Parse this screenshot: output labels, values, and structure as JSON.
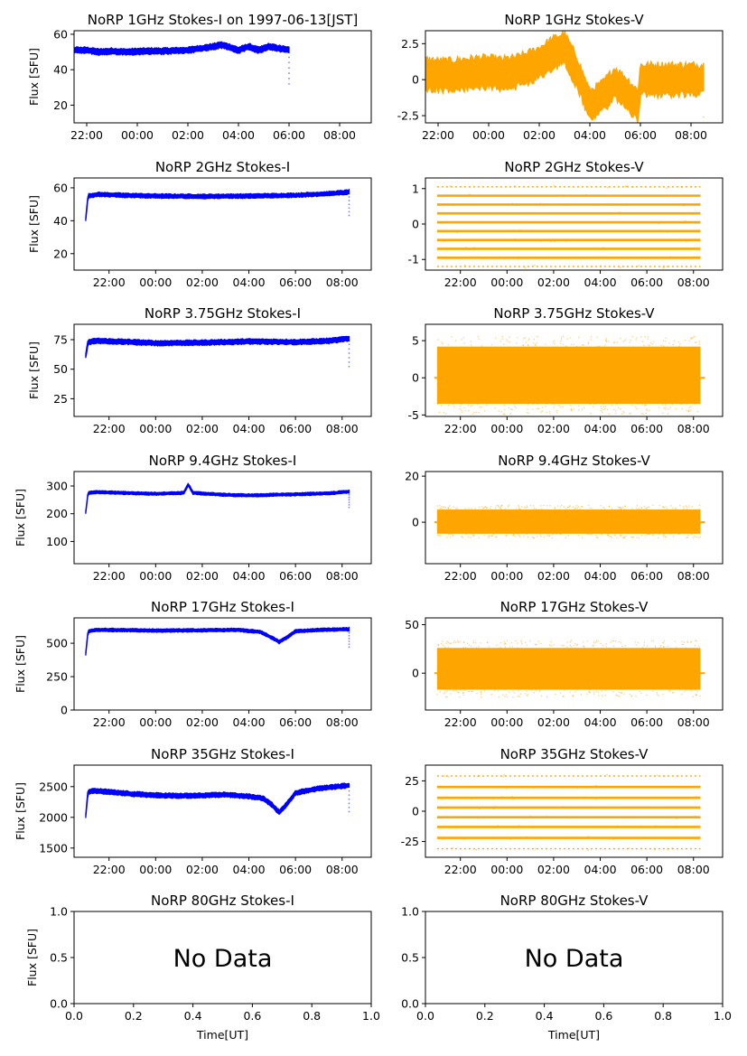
{
  "figure": {
    "xlabel": "Time[UT]",
    "no_data_label": "No Data"
  },
  "colors": {
    "stokes_i": "#0000ff",
    "stokes_v": "#ffa500",
    "axes": "#000000"
  },
  "chart_data": [
    {
      "id": "p0",
      "type": "scatter",
      "title": "NoRP 1GHz Stokes-I on 1997-06-13[JST]",
      "ylabel": "Flux [SFU]",
      "color": "#0000ff",
      "style": "line",
      "xticks": [
        "22:00",
        "00:00",
        "02:00",
        "04:00",
        "06:00",
        "08:00"
      ],
      "xlim": [
        -2.5,
        9.25
      ],
      "ylim": [
        10,
        62
      ],
      "yticks": [
        20,
        40,
        60
      ],
      "xrange": [
        -3,
        6
      ],
      "series": [
        {
          "x": [
            -3.0,
            -2.9,
            -2.5,
            -2.0,
            -1.5,
            -1.0,
            -0.5,
            0,
            0.5,
            1.0,
            1.5,
            2.0,
            2.5,
            3.0,
            3.3,
            3.6,
            4.0,
            4.4,
            4.8,
            5.2,
            5.6,
            6.0
          ],
          "y": [
            41,
            48,
            51,
            51,
            50,
            50.5,
            50,
            50.3,
            50.5,
            50.5,
            50.7,
            51,
            52,
            53,
            54,
            53,
            51,
            53,
            51,
            53,
            52,
            51
          ],
          "band": 2
        }
      ]
    },
    {
      "id": "p1",
      "type": "scatter",
      "title": "NoRP 1GHz Stokes-V",
      "ylabel": "",
      "color": "#ffa500",
      "style": "line",
      "xticks": [
        "22:00",
        "00:00",
        "02:00",
        "04:00",
        "06:00",
        "08:00"
      ],
      "xlim": [
        -2.5,
        9.25
      ],
      "ylim": [
        -3,
        3.4
      ],
      "yticks": [
        -2.5,
        0.0,
        2.5
      ],
      "xrange": [
        -3,
        8.5
      ],
      "series": [
        {
          "x": [
            -3.0,
            -2.5,
            -2.0,
            -1.5,
            -1.0,
            -0.5,
            0,
            0.5,
            1.0,
            1.5,
            2.0,
            2.5,
            3.0,
            3.5,
            4.0,
            4.5,
            5.0,
            5.5,
            5.9,
            6.0,
            8.5
          ],
          "y": [
            0.1,
            0.4,
            0.3,
            0.3,
            0.4,
            0.5,
            0.5,
            0.4,
            0.5,
            0.8,
            1.2,
            1.8,
            2.2,
            0.5,
            -1.8,
            -1.2,
            -0.2,
            -1.0,
            -1.8,
            0,
            0
          ],
          "band": 1.3
        }
      ]
    },
    {
      "id": "p2",
      "type": "scatter",
      "title": "NoRP 2GHz Stokes-I",
      "ylabel": "Flux [SFU]",
      "color": "#0000ff",
      "style": "line",
      "xticks": [
        "22:00",
        "00:00",
        "02:00",
        "04:00",
        "06:00",
        "08:00"
      ],
      "xlim": [
        -3.5,
        9.25
      ],
      "ylim": [
        10,
        66
      ],
      "yticks": [
        20,
        40,
        60
      ],
      "xrange": [
        -3,
        8.3
      ],
      "series": [
        {
          "x": [
            -3.0,
            -2.9,
            -2.5,
            -1.5,
            0,
            2.0,
            4.0,
            6.0,
            7.5,
            8.3
          ],
          "y": [
            41,
            55,
            56,
            55.5,
            55,
            54.8,
            55,
            55.5,
            56.5,
            57.5
          ],
          "band": 1.5
        }
      ]
    },
    {
      "id": "p3",
      "type": "scatter",
      "title": "NoRP 2GHz Stokes-V",
      "ylabel": "",
      "color": "#ffa500",
      "style": "levels",
      "xticks": [
        "22:00",
        "00:00",
        "02:00",
        "04:00",
        "06:00",
        "08:00"
      ],
      "xlim": [
        -3.5,
        9.25
      ],
      "ylim": [
        -1.3,
        1.3
      ],
      "yticks": [
        -1,
        0,
        1
      ],
      "xrange": [
        -3,
        8.3
      ],
      "levels": [
        -1.2,
        -0.95,
        -0.7,
        -0.45,
        -0.2,
        0.05,
        0.3,
        0.55,
        0.8,
        1.05
      ]
    },
    {
      "id": "p4",
      "type": "scatter",
      "title": "NoRP 3.75GHz Stokes-I",
      "ylabel": "Flux [SFU]",
      "color": "#0000ff",
      "style": "line",
      "xticks": [
        "22:00",
        "00:00",
        "02:00",
        "04:00",
        "06:00",
        "08:00"
      ],
      "xlim": [
        -3.5,
        9.25
      ],
      "ylim": [
        10,
        88
      ],
      "yticks": [
        25,
        50,
        75
      ],
      "xrange": [
        -3,
        8.3
      ],
      "series": [
        {
          "x": [
            -3.0,
            -2.9,
            -2.5,
            -1.0,
            0,
            2.0,
            4.0,
            6.0,
            7.5,
            8.3
          ],
          "y": [
            61,
            73,
            74,
            73,
            72,
            72.5,
            73.5,
            73,
            74,
            76
          ],
          "band": 2.5
        }
      ]
    },
    {
      "id": "p5",
      "type": "scatter",
      "title": "NoRP 3.75GHz Stokes-V",
      "ylabel": "",
      "color": "#ffa500",
      "style": "band",
      "xticks": [
        "22:00",
        "00:00",
        "02:00",
        "04:00",
        "06:00",
        "08:00"
      ],
      "xlim": [
        -3.5,
        9.25
      ],
      "ylim": [
        -5.2,
        7.2
      ],
      "yticks": [
        -5,
        0,
        5
      ],
      "xrange": [
        -3,
        8.3
      ],
      "band_limits": [
        -3.5,
        4.2
      ]
    },
    {
      "id": "p6",
      "type": "scatter",
      "title": "NoRP 9.4GHz Stokes-I",
      "ylabel": "Flux [SFU]",
      "color": "#0000ff",
      "style": "line",
      "xticks": [
        "22:00",
        "00:00",
        "02:00",
        "04:00",
        "06:00",
        "08:00"
      ],
      "xlim": [
        -3.5,
        9.25
      ],
      "ylim": [
        20,
        352
      ],
      "yticks": [
        100,
        200,
        300
      ],
      "xrange": [
        -3,
        8.3
      ],
      "series": [
        {
          "x": [
            -3.0,
            -2.9,
            -2.5,
            -1.0,
            0,
            1.2,
            1.4,
            1.6,
            3.0,
            4.0,
            6.0,
            7.5,
            8.3
          ],
          "y": [
            205,
            275,
            278,
            274,
            272,
            275,
            305,
            275,
            268,
            266,
            270,
            274,
            280
          ],
          "band": 6
        }
      ]
    },
    {
      "id": "p7",
      "type": "scatter",
      "title": "NoRP 9.4GHz Stokes-V",
      "ylabel": "",
      "color": "#ffa500",
      "style": "band",
      "xticks": [
        "22:00",
        "00:00",
        "02:00",
        "04:00",
        "06:00",
        "08:00"
      ],
      "xlim": [
        -3.5,
        9.25
      ],
      "ylim": [
        -18,
        22
      ],
      "yticks": [
        0,
        20
      ],
      "xrange": [
        -3,
        8.3
      ],
      "band_limits": [
        -5,
        5.5
      ]
    },
    {
      "id": "p8",
      "type": "scatter",
      "title": "NoRP 17GHz Stokes-I",
      "ylabel": "Flux [SFU]",
      "color": "#0000ff",
      "style": "line",
      "xticks": [
        "22:00",
        "00:00",
        "02:00",
        "04:00",
        "06:00",
        "08:00"
      ],
      "xlim": [
        -3.5,
        9.25
      ],
      "ylim": [
        0,
        690
      ],
      "yticks": [
        0,
        250,
        500
      ],
      "xrange": [
        -3,
        8.3
      ],
      "series": [
        {
          "x": [
            -3.0,
            -2.9,
            -2.5,
            -1.0,
            0,
            2.0,
            3.5,
            4.5,
            5.0,
            5.3,
            5.6,
            6.0,
            7.0,
            8.3
          ],
          "y": [
            420,
            590,
            600,
            598,
            595,
            597,
            600,
            585,
            540,
            510,
            540,
            590,
            600,
            605
          ],
          "band": 14
        }
      ]
    },
    {
      "id": "p9",
      "type": "scatter",
      "title": "NoRP 17GHz Stokes-V",
      "ylabel": "",
      "color": "#ffa500",
      "style": "band",
      "xticks": [
        "22:00",
        "00:00",
        "02:00",
        "04:00",
        "06:00",
        "08:00"
      ],
      "xlim": [
        -3.5,
        9.25
      ],
      "ylim": [
        -38,
        57
      ],
      "yticks": [
        0,
        50
      ],
      "xrange": [
        -3,
        8.3
      ],
      "band_limits": [
        -17,
        26
      ]
    },
    {
      "id": "p10",
      "type": "scatter",
      "title": "NoRP 35GHz Stokes-I",
      "ylabel": "Flux [SFU]",
      "color": "#0000ff",
      "style": "line",
      "xticks": [
        "22:00",
        "00:00",
        "02:00",
        "04:00",
        "06:00",
        "08:00"
      ],
      "xlim": [
        -3.5,
        9.25
      ],
      "ylim": [
        1350,
        2850
      ],
      "yticks": [
        1500,
        2000,
        2500
      ],
      "xrange": [
        -3,
        8.3
      ],
      "series": [
        {
          "x": [
            -3.0,
            -2.9,
            -2.5,
            -1.0,
            0,
            1.0,
            2.0,
            3.0,
            4.0,
            4.6,
            5.0,
            5.3,
            5.6,
            6.0,
            7.0,
            8.3
          ],
          "y": [
            2020,
            2420,
            2430,
            2380,
            2360,
            2350,
            2355,
            2370,
            2340,
            2310,
            2200,
            2080,
            2200,
            2400,
            2470,
            2520
          ],
          "band": 45
        }
      ]
    },
    {
      "id": "p11",
      "type": "scatter",
      "title": "NoRP 35GHz Stokes-V",
      "ylabel": "",
      "color": "#ffa500",
      "style": "levels",
      "xticks": [
        "22:00",
        "00:00",
        "02:00",
        "04:00",
        "06:00",
        "08:00"
      ],
      "xlim": [
        -3.5,
        9.25
      ],
      "ylim": [
        -38,
        38
      ],
      "yticks": [
        -25,
        0,
        25
      ],
      "xrange": [
        -3,
        8.3
      ],
      "levels": [
        -31,
        -22,
        -13,
        -5,
        3,
        11,
        20,
        29
      ]
    },
    {
      "id": "p12",
      "type": "scatter",
      "title": "NoRP 80GHz Stokes-I",
      "ylabel": "Flux [SFU]",
      "color": "#0000ff",
      "style": "nodata",
      "xticks": [
        "0.0",
        "0.2",
        "0.4",
        "0.6",
        "0.8",
        "1.0"
      ],
      "yticks": [
        "0.0",
        "0.5",
        "1.0"
      ],
      "xlabel": "Time[UT]"
    },
    {
      "id": "p13",
      "type": "scatter",
      "title": "NoRP 80GHz Stokes-V",
      "ylabel": "",
      "color": "#ffa500",
      "style": "nodata",
      "xticks": [
        "0.0",
        "0.2",
        "0.4",
        "0.6",
        "0.8",
        "1.0"
      ],
      "yticks": [
        "0.0",
        "0.5",
        "1.0"
      ],
      "xlabel": "Time[UT]"
    }
  ]
}
